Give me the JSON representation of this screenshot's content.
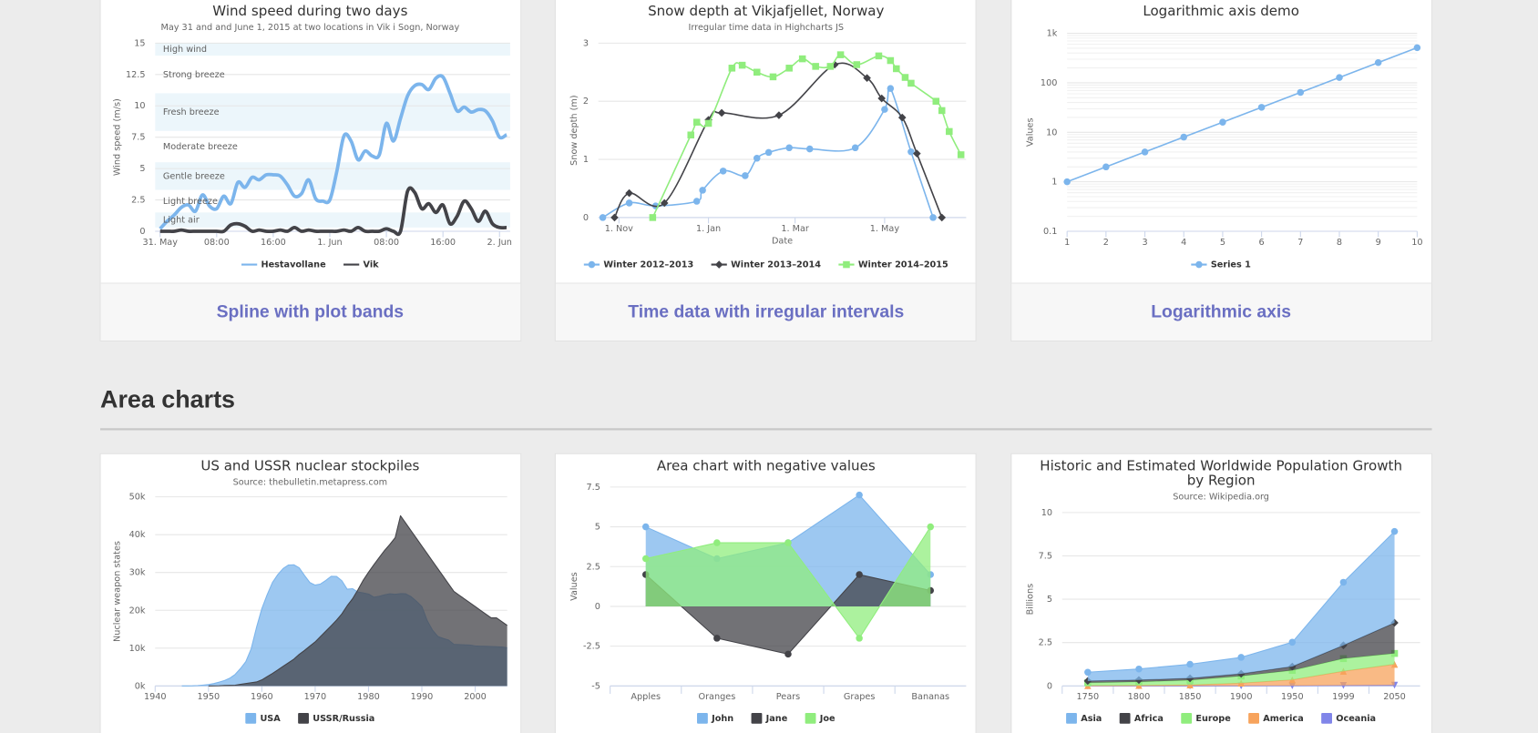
{
  "cards": [
    {
      "caption": "Spline with plot bands"
    },
    {
      "caption": "Time data with irregular intervals"
    },
    {
      "caption": "Logarithmic axis"
    }
  ],
  "section_title": "Area charts",
  "chart_data": [
    {
      "type": "spline",
      "title": "Wind speed during two days",
      "subtitle": "May 31 and and June 1, 2015 at two locations in Vik i Sogn, Norway",
      "y_label": "Wind speed (m/s)",
      "grid": true,
      "markers": false,
      "legend": "bottom",
      "x": [
        0,
        1,
        2,
        3,
        4,
        5,
        6,
        7,
        8,
        9,
        10,
        11,
        12,
        13,
        14,
        15,
        16,
        17,
        18,
        19,
        20,
        21,
        22,
        23,
        24,
        25,
        26,
        27,
        28,
        29,
        30,
        31,
        32,
        33,
        34,
        35,
        36,
        37,
        38,
        39,
        40,
        41,
        42,
        43,
        44,
        45,
        46,
        47,
        48,
        49
      ],
      "xlim": [
        -0.7,
        49.5
      ],
      "xticks": [
        {
          "value": 0,
          "label": "31. May"
        },
        {
          "value": 8,
          "label": "08:00"
        },
        {
          "value": 16,
          "label": "16:00"
        },
        {
          "value": 24,
          "label": "1. Jun"
        },
        {
          "value": 32,
          "label": "08:00"
        },
        {
          "value": 40,
          "label": "16:00"
        },
        {
          "value": 48,
          "label": "2. Jun"
        }
      ],
      "ylim": [
        0,
        15
      ],
      "yticks": [
        0,
        2.5,
        5,
        7.5,
        10,
        12.5,
        15
      ],
      "plot_bands": [
        {
          "from": 0.3,
          "to": 1.5,
          "label": "Light air",
          "color": "rgba(68,170,213,0.1)"
        },
        {
          "from": 1.5,
          "to": 3.3,
          "label": "Light breeze",
          "color": "rgba(0,0,0,0)"
        },
        {
          "from": 3.3,
          "to": 5.5,
          "label": "Gentle breeze",
          "color": "rgba(68,170,213,0.1)"
        },
        {
          "from": 5.5,
          "to": 8,
          "label": "Moderate breeze",
          "color": "rgba(0,0,0,0)"
        },
        {
          "from": 8,
          "to": 11,
          "label": "Fresh breeze",
          "color": "rgba(68,170,213,0.1)"
        },
        {
          "from": 11,
          "to": 14,
          "label": "Strong breeze",
          "color": "rgba(0,0,0,0)"
        },
        {
          "from": 14,
          "to": 15,
          "label": "High wind",
          "color": "rgba(68,170,213,0.1)"
        }
      ],
      "series": [
        {
          "name": "Hestavollane",
          "color": "#7cb5ec",
          "values": [
            0.2,
            0.8,
            1.3,
            1.9,
            2.1,
            1.6,
            2.9,
            2.0,
            1.8,
            2.8,
            2.2,
            3.9,
            3.5,
            4.3,
            4.1,
            4.5,
            4.5,
            4.4,
            3.7,
            2.8,
            3.0,
            4.1,
            2.6,
            2.4,
            2.5,
            4.8,
            7.6,
            7.2,
            5.7,
            6.4,
            6.0,
            6.1,
            8.6,
            7.2,
            9.0,
            10.8,
            11.6,
            11.7,
            11.3,
            12.2,
            12.3,
            11.0,
            9.6,
            9.9,
            9.5,
            9.7,
            9.6,
            8.8,
            7.5,
            7.7
          ]
        },
        {
          "name": "Vik",
          "color": "#434348",
          "values": [
            0,
            0,
            0,
            0.1,
            0,
            0,
            0,
            0,
            0,
            0,
            0.5,
            0.6,
            0.4,
            0,
            0.1,
            0,
            0,
            0.1,
            0,
            0.3,
            0,
            0.1,
            0,
            0,
            0,
            0,
            0.1,
            0,
            0.3,
            0,
            0,
            0,
            0.2,
            0,
            0,
            3.2,
            3.1,
            1.8,
            2.2,
            1.5,
            2.1,
            0.6,
            1.2,
            2.4,
            1.8,
            0.8,
            1.6,
            0.6,
            0.3,
            0.3
          ]
        }
      ]
    },
    {
      "type": "spline",
      "title": "Snow depth at Vikjafjellet, Norway",
      "subtitle": "Irregular time data in Highcharts JS",
      "y_label": "Snow depth (m)",
      "x_label": "Date",
      "grid": true,
      "markers": true,
      "legend": "bottom",
      "xlim": [
        -14,
        236.5
      ],
      "xticks": [
        {
          "value": 0,
          "label": "1. Nov"
        },
        {
          "value": 61,
          "label": "1. Jan"
        },
        {
          "value": 120,
          "label": "1. Mar"
        },
        {
          "value": 181,
          "label": "1. May"
        }
      ],
      "ylim": [
        0,
        3
      ],
      "yticks": [
        0,
        1,
        2,
        3
      ],
      "series": [
        {
          "name": "Winter 2012–2013",
          "color": "#7cb5ec",
          "symbol": "circle",
          "x": [
            -11,
            7,
            25,
            53,
            57,
            71,
            86,
            94,
            102,
            116,
            130,
            161,
            181,
            185,
            199,
            214
          ],
          "values": [
            0,
            0.25,
            0.2,
            0.28,
            0.47,
            0.8,
            0.72,
            1.02,
            1.12,
            1.2,
            1.18,
            1.2,
            1.86,
            2.22,
            1.13,
            0
          ]
        },
        {
          "name": "Winter 2013–2014",
          "color": "#434348",
          "symbol": "diamond",
          "x": [
            -3,
            7,
            31,
            61,
            70,
            109,
            147,
            169,
            179,
            193,
            203,
            220
          ],
          "values": [
            0,
            0.42,
            0.25,
            1.68,
            1.8,
            1.76,
            2.63,
            2.4,
            2.05,
            1.72,
            1.1,
            0
          ]
        },
        {
          "name": "Winter 2014–2015",
          "color": "#90ed7d",
          "symbol": "square",
          "x": [
            23,
            49,
            53,
            61,
            77,
            84,
            94,
            105,
            116,
            125,
            134,
            144,
            151,
            162,
            177,
            185,
            189,
            195,
            199,
            216,
            220,
            225,
            233
          ],
          "values": [
            0,
            1.42,
            1.64,
            1.62,
            2.57,
            2.62,
            2.5,
            2.42,
            2.57,
            2.73,
            2.6,
            2.6,
            2.8,
            2.63,
            2.78,
            2.7,
            2.56,
            2.41,
            2.31,
            2.0,
            1.84,
            1.48,
            1.08
          ]
        }
      ]
    },
    {
      "type": "line",
      "title": "Logarithmic axis demo",
      "y_label": "Values",
      "grid": true,
      "minor_grid": true,
      "log_y": true,
      "markers": true,
      "legend": "bottom",
      "x": [
        1,
        2,
        3,
        4,
        5,
        6,
        7,
        8,
        9,
        10
      ],
      "xlim": [
        1,
        10
      ],
      "xticks": [
        1,
        2,
        3,
        4,
        5,
        6,
        7,
        8,
        9,
        10
      ],
      "ylim": [
        0.1,
        1000
      ],
      "yticks": [
        0.1,
        1,
        10,
        100,
        {
          "value": 1000,
          "label": "1k"
        }
      ],
      "series": [
        {
          "name": "Series 1",
          "color": "#7cb5ec",
          "symbol": "circle",
          "values": [
            1,
            2,
            4,
            8,
            16,
            32,
            64,
            128,
            256,
            512
          ]
        }
      ]
    },
    {
      "type": "area",
      "title": "US and USSR nuclear stockpiles",
      "subtitle": "Source: thebulletin.metapress.com",
      "y_label": "Nuclear weapon states",
      "grid": true,
      "markers": false,
      "legend": "bottom",
      "x": [
        1940,
        1941,
        1942,
        1943,
        1944,
        1945,
        1946,
        1947,
        1948,
        1949,
        1950,
        1951,
        1952,
        1953,
        1954,
        1955,
        1956,
        1957,
        1958,
        1959,
        1960,
        1961,
        1962,
        1963,
        1964,
        1965,
        1966,
        1967,
        1968,
        1969,
        1970,
        1971,
        1972,
        1973,
        1974,
        1975,
        1976,
        1977,
        1978,
        1979,
        1980,
        1981,
        1982,
        1983,
        1984,
        1985,
        1986,
        1987,
        1988,
        1989,
        1990,
        1991,
        1992,
        1993,
        1994,
        1995,
        1996,
        1997,
        1998,
        1999,
        2000,
        2001,
        2002,
        2003,
        2004,
        2005,
        2006
      ],
      "xlim": [
        1940,
        2006
      ],
      "xticks": [
        1940,
        1950,
        1960,
        1970,
        1980,
        1990,
        2000
      ],
      "ylim": [
        0,
        50000
      ],
      "yticks": [
        {
          "value": 0,
          "label": "0k"
        },
        {
          "value": 10000,
          "label": "10k"
        },
        {
          "value": 20000,
          "label": "20k"
        },
        {
          "value": 30000,
          "label": "30k"
        },
        {
          "value": 40000,
          "label": "40k"
        },
        {
          "value": 50000,
          "label": "50k"
        }
      ],
      "series": [
        {
          "name": "USA",
          "color": "#7cb5ec",
          "values": [
            null,
            null,
            null,
            null,
            null,
            6,
            11,
            32,
            110,
            235,
            369,
            640,
            1005,
            1436,
            2063,
            3057,
            4618,
            6444,
            9822,
            15468,
            20434,
            24126,
            27387,
            29459,
            31056,
            31982,
            32040,
            31233,
            29224,
            27342,
            26662,
            26956,
            27912,
            28999,
            28965,
            27826,
            25579,
            25722,
            24826,
            24605,
            24304,
            23464,
            23708,
            24099,
            24357,
            24237,
            24401,
            24344,
            23586,
            22380,
            21004,
            17287,
            14747,
            13076,
            12555,
            12144,
            11009,
            10950,
            10871,
            10824,
            10577,
            10527,
            10475,
            10421,
            10358,
            10295,
            10104
          ]
        },
        {
          "name": "USSR/Russia",
          "color": "#434348",
          "values": [
            null,
            null,
            null,
            null,
            null,
            null,
            null,
            null,
            null,
            null,
            5,
            25,
            50,
            120,
            150,
            200,
            426,
            660,
            869,
            1060,
            1605,
            2471,
            3322,
            4238,
            5221,
            6129,
            7089,
            8339,
            9399,
            10538,
            11643,
            13092,
            14478,
            15915,
            17385,
            19055,
            21205,
            23044,
            25393,
            27935,
            30062,
            32049,
            33952,
            35804,
            37431,
            39197,
            45000,
            43000,
            41000,
            39000,
            37000,
            35000,
            33000,
            31000,
            29000,
            27000,
            25000,
            24000,
            23000,
            22000,
            21000,
            20000,
            19000,
            18000,
            18000,
            17000,
            16000
          ]
        }
      ]
    },
    {
      "type": "area",
      "title": "Area chart with negative values",
      "y_label": "Values",
      "grid": true,
      "markers": true,
      "legend": "bottom",
      "categories": [
        "Apples",
        "Oranges",
        "Pears",
        "Grapes",
        "Bananas"
      ],
      "ylim": [
        -5,
        7.5
      ],
      "yticks": [
        -5,
        -2.5,
        0,
        2.5,
        5,
        7.5
      ],
      "series": [
        {
          "name": "John",
          "color": "#7cb5ec",
          "symbol": "circle",
          "values": [
            5,
            3,
            4,
            7,
            2
          ]
        },
        {
          "name": "Jane",
          "color": "#434348",
          "symbol": "circle",
          "values": [
            2,
            -2,
            -3,
            2,
            1
          ]
        },
        {
          "name": "Joe",
          "color": "#90ed7d",
          "symbol": "circle",
          "values": [
            3,
            4,
            4,
            -2,
            5
          ]
        }
      ]
    },
    {
      "type": "area",
      "stacked": true,
      "title": "Historic and Estimated Worldwide Population Growth by Region",
      "subtitle": "Source: Wikipedia.org",
      "y_label": "Billions",
      "grid": true,
      "markers": true,
      "legend": "bottom",
      "categories": [
        "1750",
        "1800",
        "1850",
        "1900",
        "1950",
        "1999",
        "2050"
      ],
      "ylim": [
        0,
        10
      ],
      "yticks": [
        0,
        2.5,
        5,
        7.5,
        10
      ],
      "series": [
        {
          "name": "Asia",
          "color": "#7cb5ec",
          "symbol": "circle",
          "values": [
            0.502,
            0.635,
            0.809,
            0.947,
            1.402,
            3.634,
            5.268
          ]
        },
        {
          "name": "Africa",
          "color": "#434348",
          "symbol": "diamond",
          "values": [
            0.106,
            0.107,
            0.111,
            0.133,
            0.221,
            0.767,
            1.766
          ]
        },
        {
          "name": "Europe",
          "color": "#90ed7d",
          "symbol": "square",
          "values": [
            0.163,
            0.203,
            0.276,
            0.408,
            0.547,
            0.729,
            0.628
          ]
        },
        {
          "name": "America",
          "color": "#f7a35c",
          "symbol": "triangle",
          "values": [
            0.018,
            0.031,
            0.054,
            0.156,
            0.339,
            0.818,
            1.201
          ]
        },
        {
          "name": "Oceania",
          "color": "#8085e9",
          "symbol": "triangle-down",
          "values": [
            0.002,
            0.002,
            0.002,
            0.006,
            0.013,
            0.03,
            0.046
          ]
        }
      ]
    }
  ]
}
